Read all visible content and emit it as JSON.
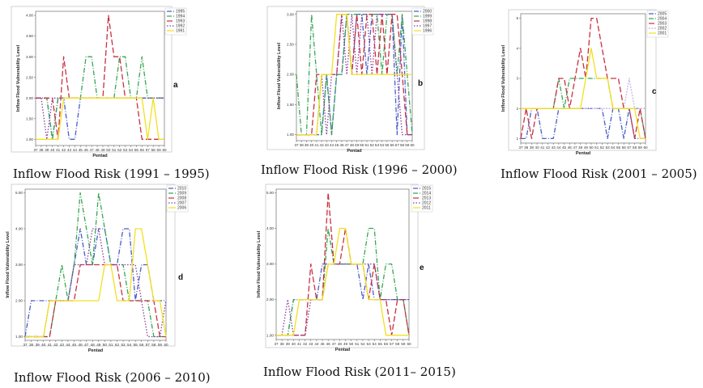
{
  "chart_data": [
    {
      "type": "line",
      "panel_letter": "a",
      "caption": "Inflow Flood Risk (1991 – 1995)",
      "xlabel": "Pentad",
      "ylabel": "Inflow Flood Vulnerability Level",
      "x": [
        37,
        38,
        39,
        40,
        41,
        42,
        43,
        44,
        45,
        46,
        47,
        48,
        49,
        50,
        51,
        52,
        53,
        54,
        55,
        56,
        57,
        58,
        59,
        60
      ],
      "ylim": [
        0.85,
        4.1
      ],
      "yticks": [
        1.0,
        1.5,
        2.0,
        2.5,
        3.0,
        3.5,
        4.0
      ],
      "ytick_labels": [
        "1.00",
        "1.50",
        "2.00",
        "2.50",
        "3.00",
        "3.50",
        "4.00"
      ],
      "series": [
        {
          "name": "1995",
          "color": "#4a5fc8",
          "dash": "6,2,1,2",
          "values": [
            2,
            2,
            2,
            1,
            2,
            2,
            1,
            1,
            2,
            2,
            2,
            2,
            2,
            2,
            2,
            2,
            2,
            2,
            2,
            2,
            2,
            2,
            2,
            2
          ]
        },
        {
          "name": "1994",
          "color": "#3aa655",
          "dash": "6,2,1,2",
          "values": [
            2,
            2,
            2,
            1,
            2,
            2,
            2,
            2,
            2,
            3,
            3,
            2,
            2,
            2,
            2,
            3,
            3,
            2,
            2,
            3,
            2,
            2,
            2,
            2
          ]
        },
        {
          "name": "1993",
          "color": "#c93040",
          "dash": "7,3",
          "values": [
            2,
            2,
            2,
            2,
            1,
            3,
            2,
            2,
            2,
            2,
            2,
            2,
            2,
            4,
            3,
            3,
            2,
            2,
            2,
            1,
            1,
            1,
            1,
            1
          ]
        },
        {
          "name": "1992",
          "color": "#8a3c9a",
          "dash": "1.5,2",
          "values": [
            2,
            2,
            1,
            2,
            2,
            2,
            2,
            2,
            2,
            2,
            2,
            2,
            2,
            2,
            2,
            2,
            2,
            2,
            2,
            2,
            2,
            2,
            2,
            2
          ]
        },
        {
          "name": "1991",
          "color": "#f2e020",
          "dash": "",
          "values": [
            1,
            1,
            1,
            1,
            1,
            2,
            2,
            2,
            2,
            2,
            2,
            2,
            2,
            2,
            2,
            2,
            2,
            2,
            2,
            2,
            1,
            2,
            1,
            1
          ]
        }
      ]
    },
    {
      "type": "line",
      "panel_letter": "b",
      "caption": "Inflow Flood Risk (1996 – 2000)",
      "xlabel": "Pentad",
      "ylabel": "Inflow Flood Vulnerability Level",
      "x": [
        37,
        38,
        39,
        40,
        41,
        42,
        43,
        44,
        45,
        46,
        47,
        48,
        49,
        50,
        51,
        52,
        53,
        54,
        55,
        56,
        57,
        58,
        59,
        60
      ],
      "ylim": [
        0.9,
        3.05
      ],
      "yticks": [
        1.0,
        1.5,
        2.0,
        2.5,
        3.0
      ],
      "ytick_labels": [
        "1.00",
        "1.50",
        "2.00",
        "2.50",
        "3.00"
      ],
      "series": [
        {
          "name": "2000",
          "color": "#4a5fc8",
          "dash": "6,2,1,2",
          "values": [
            1,
            1,
            1,
            1,
            1,
            1,
            2,
            1,
            2,
            2,
            3,
            2,
            3,
            3,
            2,
            3,
            3,
            3,
            3,
            3,
            1,
            3,
            1,
            1
          ]
        },
        {
          "name": "1999",
          "color": "#3aa655",
          "dash": "6,2,1,2",
          "values": [
            2,
            1,
            1,
            3,
            2,
            1,
            2,
            1,
            2,
            2,
            3,
            3,
            3,
            3,
            3,
            3,
            3,
            2,
            3,
            3,
            2,
            3,
            2,
            1
          ]
        },
        {
          "name": "1998",
          "color": "#c93040",
          "dash": "7,3",
          "values": [
            1,
            1,
            1,
            1,
            2,
            2,
            2,
            2,
            2,
            3,
            3,
            2,
            3,
            2,
            3,
            3,
            2,
            3,
            2,
            3,
            3,
            2,
            1,
            1
          ]
        },
        {
          "name": "1997",
          "color": "#8a3c9a",
          "dash": "1.5,2",
          "values": [
            1,
            1,
            1,
            1,
            1,
            2,
            1,
            2,
            2,
            3,
            2,
            3,
            2,
            3,
            3,
            2,
            3,
            3,
            3,
            3,
            2,
            1,
            1,
            1
          ]
        },
        {
          "name": "1996",
          "color": "#f2e020",
          "dash": "",
          "values": [
            1,
            1,
            1,
            1,
            1,
            2,
            2,
            2,
            3,
            3,
            3,
            2,
            2,
            2,
            2,
            2,
            2,
            2,
            2,
            2,
            2,
            2,
            2,
            2
          ]
        }
      ]
    },
    {
      "type": "line",
      "panel_letter": "c",
      "caption": "Inflow Flood Risk (2001 – 2005)",
      "xlabel": "Pentad",
      "ylabel": "Inflow Flood Vulnerability Level",
      "x": [
        37,
        38,
        39,
        40,
        41,
        42,
        43,
        44,
        45,
        46,
        47,
        48,
        49,
        50,
        51,
        52,
        53,
        54,
        55,
        56,
        57,
        58,
        59,
        60
      ],
      "ylim": [
        0.85,
        5.15
      ],
      "yticks": [
        1,
        2,
        3,
        4,
        5
      ],
      "ytick_labels": [
        "1",
        "2",
        "3",
        "4",
        "5"
      ],
      "series": [
        {
          "name": "2005",
          "color": "#4a5fc8",
          "dash": "6,2,1,2",
          "values": [
            1,
            1,
            2,
            2,
            1,
            1,
            1,
            2,
            2,
            2,
            2,
            2,
            2,
            2,
            2,
            2,
            1,
            2,
            2,
            1,
            2,
            1,
            1,
            1
          ]
        },
        {
          "name": "2004",
          "color": "#3aa655",
          "dash": "6,2,1,2",
          "values": [
            2,
            2,
            2,
            2,
            2,
            2,
            2,
            3,
            2,
            3,
            3,
            3,
            3,
            3,
            3,
            3,
            3,
            2,
            2,
            2,
            2,
            2,
            2,
            1
          ]
        },
        {
          "name": "2003",
          "color": "#c93040",
          "dash": "7,3",
          "values": [
            1,
            2,
            1,
            2,
            2,
            2,
            2,
            3,
            3,
            2,
            3,
            4,
            3,
            5,
            5,
            4,
            3,
            3,
            3,
            2,
            2,
            1,
            2,
            1
          ]
        },
        {
          "name": "2002",
          "color": "#c8b4e6",
          "dash": "2,1.5",
          "values": [
            2,
            2,
            2,
            2,
            2,
            2,
            2,
            2,
            2,
            2,
            2,
            2,
            2,
            2,
            2,
            2,
            2,
            2,
            2,
            2,
            3,
            2,
            2,
            2
          ]
        },
        {
          "name": "2001",
          "color": "#f2e020",
          "dash": "",
          "values": [
            2,
            2,
            2,
            2,
            2,
            2,
            2,
            2,
            2,
            2,
            2,
            2,
            3,
            4,
            3,
            3,
            3,
            2,
            2,
            2,
            2,
            2,
            1,
            1
          ]
        }
      ]
    },
    {
      "type": "line",
      "panel_letter": "d",
      "caption": "Inflow Flood Risk (2006 – 2010)",
      "xlabel": "Pentad",
      "ylabel": "Inflow Flood Vulnerability Level",
      "x": [
        37,
        38,
        39,
        40,
        41,
        42,
        43,
        44,
        45,
        46,
        47,
        48,
        49,
        50,
        51,
        52,
        53,
        54,
        55,
        56,
        57,
        58,
        59,
        60
      ],
      "ylim": [
        0.9,
        5.1
      ],
      "yticks": [
        1.0,
        2.0,
        3.0,
        4.0,
        5.0
      ],
      "ytick_labels": [
        "1.00",
        "2.00",
        "3.00",
        "4.00",
        "5.00"
      ],
      "series": [
        {
          "name": "2010",
          "color": "#4a5fc8",
          "dash": "6,2,1,2",
          "values": [
            1,
            2,
            2,
            2,
            2,
            2,
            2,
            2,
            3,
            4,
            3,
            3,
            4,
            4,
            3,
            3,
            4,
            4,
            2,
            3,
            3,
            2,
            2,
            2
          ]
        },
        {
          "name": "2009",
          "color": "#3aa655",
          "dash": "6,2,1,2",
          "values": [
            1,
            1,
            1,
            1,
            1,
            2,
            3,
            2,
            3,
            5,
            4,
            3,
            5,
            4,
            3,
            3,
            3,
            2,
            2,
            2,
            2,
            1,
            1,
            1
          ]
        },
        {
          "name": "2008",
          "color": "#c93040",
          "dash": "7,3",
          "values": [
            1,
            1,
            1,
            1,
            1,
            2,
            2,
            2,
            2,
            3,
            3,
            3,
            3,
            3,
            3,
            3,
            2,
            2,
            2,
            2,
            2,
            2,
            1,
            1
          ]
        },
        {
          "name": "2007",
          "color": "#8a3c9a",
          "dash": "1.5,2",
          "values": [
            1,
            1,
            1,
            1,
            2,
            2,
            2,
            2,
            3,
            3,
            3,
            4,
            4,
            3,
            3,
            3,
            3,
            3,
            3,
            2,
            1,
            1,
            1,
            2
          ]
        },
        {
          "name": "2006",
          "color": "#f2e020",
          "dash": "",
          "values": [
            1,
            1,
            1,
            1,
            2,
            2,
            2,
            2,
            2,
            2,
            2,
            2,
            2,
            3,
            3,
            2,
            2,
            2,
            4,
            4,
            3,
            2,
            2,
            1
          ]
        }
      ]
    },
    {
      "type": "line",
      "panel_letter": "e",
      "caption": "Inflow Flood Risk (2011– 2015)",
      "xlabel": "Pentad",
      "ylabel": "Inflow Flood Vulnerability Level",
      "x": [
        37,
        38,
        39,
        40,
        41,
        42,
        43,
        44,
        45,
        46,
        47,
        48,
        49,
        50,
        51,
        52,
        53,
        54,
        55,
        56,
        57,
        58,
        59,
        60
      ],
      "ylim": [
        0.88,
        5.1
      ],
      "yticks": [
        1.0,
        2.0,
        3.0,
        4.0,
        5.0
      ],
      "ytick_labels": [
        "1.00",
        "2.00",
        "3.00",
        "4.00",
        "5.00"
      ],
      "series": [
        {
          "name": "2015",
          "color": "#4a5fc8",
          "dash": "6,2,1,2",
          "values": [
            1,
            1,
            1,
            2,
            2,
            2,
            2,
            2,
            3,
            3,
            3,
            3,
            3,
            3,
            3,
            2,
            3,
            2,
            2,
            2,
            2,
            2,
            2,
            2
          ]
        },
        {
          "name": "2014",
          "color": "#3aa655",
          "dash": "6,2,1,2",
          "values": [
            1,
            1,
            1,
            2,
            2,
            2,
            2,
            2,
            2,
            4,
            3,
            3,
            3,
            3,
            3,
            3,
            4,
            4,
            2,
            3,
            3,
            2,
            2,
            1
          ]
        },
        {
          "name": "2013",
          "color": "#c93040",
          "dash": "7,3",
          "values": [
            1,
            1,
            1,
            1,
            1,
            1,
            3,
            2,
            2,
            5,
            3,
            3,
            4,
            3,
            3,
            3,
            2,
            3,
            2,
            2,
            1,
            2,
            2,
            1
          ]
        },
        {
          "name": "2012",
          "color": "#8a3c9a",
          "dash": "1.5,2",
          "values": [
            1,
            1,
            2,
            1,
            1,
            1,
            2,
            2,
            2,
            3,
            3,
            3,
            3,
            3,
            3,
            3,
            3,
            3,
            2,
            2,
            2,
            2,
            2,
            2
          ]
        },
        {
          "name": "2011",
          "color": "#f2e020",
          "dash": "",
          "values": [
            1,
            1,
            1,
            1,
            2,
            2,
            2,
            2,
            2,
            3,
            3,
            4,
            4,
            3,
            3,
            3,
            2,
            2,
            2,
            1,
            1,
            1,
            1,
            1
          ]
        }
      ]
    }
  ]
}
